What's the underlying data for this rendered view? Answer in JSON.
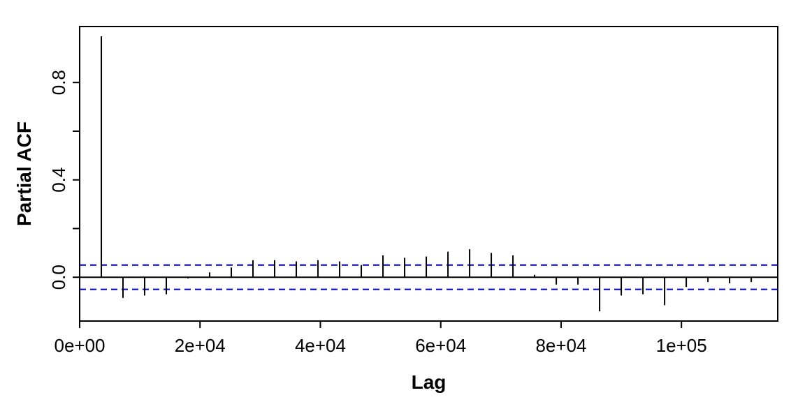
{
  "chart_data": {
    "type": "bar",
    "title": "",
    "xlabel": "Lag",
    "ylabel": "Partial ACF",
    "xlim": [
      0,
      116000
    ],
    "ylim": [
      -0.18,
      1.03
    ],
    "x_ticks": [
      0,
      20000,
      40000,
      60000,
      80000,
      100000
    ],
    "x_tick_labels": [
      "0e+00",
      "2e+04",
      "4e+04",
      "6e+04",
      "8e+04",
      "1e+05"
    ],
    "y_ticks": [
      0.0,
      0.2,
      0.4,
      0.6,
      0.8
    ],
    "y_tick_labels": [
      "0.0",
      "",
      "0.4",
      "",
      "0.8"
    ],
    "confidence_band": 0.05,
    "zero_line": 0,
    "grid": false,
    "colors": {
      "bars": "#000000",
      "band": "#0000cc",
      "axis": "#000000"
    },
    "x": [
      3600,
      7200,
      10800,
      14400,
      18000,
      21600,
      25200,
      28800,
      32400,
      36000,
      39600,
      43200,
      46800,
      50400,
      54000,
      57600,
      61200,
      64800,
      68400,
      72000,
      75600,
      79200,
      82800,
      86400,
      90000,
      93600,
      97200,
      100800,
      104400,
      108000,
      111600
    ],
    "values": [
      0.99,
      -0.085,
      -0.075,
      -0.07,
      -0.005,
      0.02,
      0.04,
      0.07,
      0.07,
      0.065,
      0.07,
      0.065,
      0.05,
      0.09,
      0.08,
      0.085,
      0.105,
      0.115,
      0.1,
      0.09,
      0.01,
      -0.03,
      -0.03,
      -0.14,
      -0.075,
      -0.07,
      -0.115,
      -0.04,
      -0.02,
      -0.025,
      -0.02
    ]
  }
}
